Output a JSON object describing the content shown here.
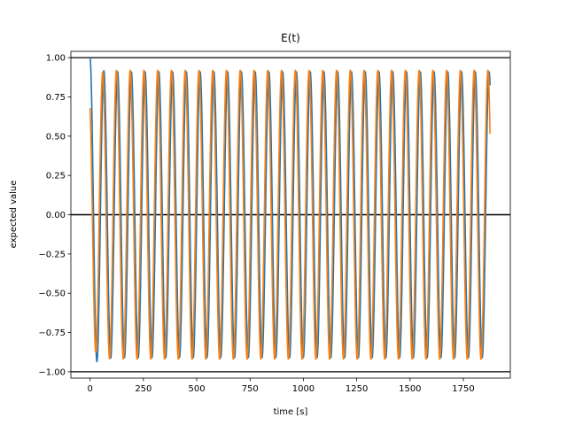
{
  "chart_data": {
    "type": "line",
    "title": "E(t)",
    "xlabel": "time [s]",
    "ylabel": "expected value",
    "xlim": [
      -90,
      1970
    ],
    "ylim": [
      -1.04,
      1.04
    ],
    "xticks": [
      0,
      250,
      500,
      750,
      1000,
      1250,
      1500,
      1750
    ],
    "xtick_labels": [
      "0",
      "250",
      "500",
      "750",
      "1000",
      "1250",
      "1500",
      "1750"
    ],
    "yticks": [
      1.0,
      0.75,
      0.5,
      0.25,
      0.0,
      -0.25,
      -0.5,
      -0.75,
      -1.0
    ],
    "ytick_labels": [
      "1.00",
      "0.75",
      "0.50",
      "0.25",
      "0.00",
      "−0.25",
      "−0.50",
      "−0.75",
      "−1.00"
    ],
    "reference_lines": [
      1.0,
      0.0,
      -1.0
    ],
    "grid": false,
    "series": [
      {
        "color": "#1f77b4",
        "period": 64.5,
        "x_start": 0,
        "x_end": 1875,
        "amplitude": 0.91,
        "start_value": 1.0,
        "end_value": 0.54
      },
      {
        "color": "#ff7f0e",
        "period": 64.5,
        "x_start": 0,
        "x_end": 1875,
        "amplitude": 0.92,
        "start_value": 0.79,
        "end_value": 0.77
      }
    ]
  }
}
